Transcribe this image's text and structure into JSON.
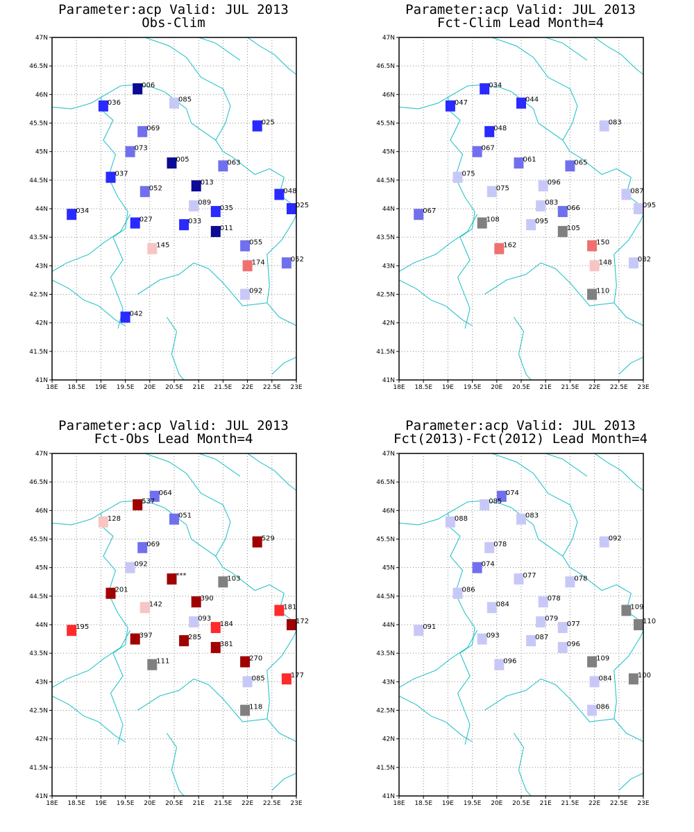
{
  "colors": {
    "coast": "#29c4c9",
    "grid": "#888888",
    "classes": {
      "dark-blue": "#0a0a96",
      "blue": "#2a2aff",
      "mid-blue": "#7070ee",
      "light-blue": "#c8c8f8",
      "light-red": "#f8c4c4",
      "salmon": "#f07070",
      "red": "#ff2a2a",
      "dark-red": "#a00000",
      "gray": "#808080"
    }
  },
  "map": {
    "lon_range": [
      18,
      23
    ],
    "lat_range": [
      41,
      47
    ],
    "lon_ticks": [
      "18E",
      "18.5E",
      "19E",
      "19.5E",
      "20E",
      "20.5E",
      "21E",
      "21.5E",
      "22E",
      "22.5E",
      "23E"
    ],
    "lat_ticks": [
      "41N",
      "41.5N",
      "42N",
      "42.5N",
      "43N",
      "43.5N",
      "44N",
      "44.5N",
      "45N",
      "45.5N",
      "46N",
      "46.5N",
      "47N"
    ]
  },
  "panels": [
    {
      "title1": "Parameter:acp Valid: JUL 2013",
      "title2": "Obs-Clim",
      "stations": [
        {
          "lon": 19.75,
          "lat": 46.1,
          "label": "006",
          "cls": "dark-blue"
        },
        {
          "lon": 20.5,
          "lat": 45.85,
          "label": "085",
          "cls": "light-blue"
        },
        {
          "lon": 19.05,
          "lat": 45.8,
          "label": "036",
          "cls": "blue"
        },
        {
          "lon": 22.2,
          "lat": 45.45,
          "label": "025",
          "cls": "blue"
        },
        {
          "lon": 19.85,
          "lat": 45.35,
          "label": "069",
          "cls": "mid-blue"
        },
        {
          "lon": 19.6,
          "lat": 45.0,
          "label": "073",
          "cls": "mid-blue"
        },
        {
          "lon": 20.45,
          "lat": 44.8,
          "label": "005",
          "cls": "dark-blue"
        },
        {
          "lon": 21.5,
          "lat": 44.75,
          "label": "063",
          "cls": "mid-blue"
        },
        {
          "lon": 19.2,
          "lat": 44.55,
          "label": "037",
          "cls": "blue"
        },
        {
          "lon": 20.95,
          "lat": 44.4,
          "label": "013",
          "cls": "dark-blue"
        },
        {
          "lon": 19.9,
          "lat": 44.3,
          "label": "052",
          "cls": "mid-blue"
        },
        {
          "lon": 22.65,
          "lat": 44.25,
          "label": "048",
          "cls": "blue"
        },
        {
          "lon": 20.9,
          "lat": 44.05,
          "label": "089",
          "cls": "light-blue"
        },
        {
          "lon": 22.9,
          "lat": 44.0,
          "label": "025",
          "cls": "blue"
        },
        {
          "lon": 21.35,
          "lat": 43.95,
          "label": "035",
          "cls": "blue"
        },
        {
          "lon": 18.4,
          "lat": 43.9,
          "label": "034",
          "cls": "blue"
        },
        {
          "lon": 19.7,
          "lat": 43.75,
          "label": "027",
          "cls": "blue"
        },
        {
          "lon": 20.7,
          "lat": 43.72,
          "label": "033",
          "cls": "blue"
        },
        {
          "lon": 21.35,
          "lat": 43.6,
          "label": "011",
          "cls": "dark-blue"
        },
        {
          "lon": 21.95,
          "lat": 43.35,
          "label": "055",
          "cls": "mid-blue"
        },
        {
          "lon": 20.05,
          "lat": 43.3,
          "label": "145",
          "cls": "light-red"
        },
        {
          "lon": 22.0,
          "lat": 43.0,
          "label": "174",
          "cls": "salmon"
        },
        {
          "lon": 22.8,
          "lat": 43.05,
          "label": "052",
          "cls": "mid-blue"
        },
        {
          "lon": 21.95,
          "lat": 42.5,
          "label": "092",
          "cls": "light-blue"
        },
        {
          "lon": 19.5,
          "lat": 42.1,
          "label": "042",
          "cls": "blue"
        }
      ]
    },
    {
      "title1": "Parameter:acp Valid: JUL 2013",
      "title2": "Fct-Clim Lead Month=4",
      "stations": [
        {
          "lon": 19.75,
          "lat": 46.1,
          "label": "034",
          "cls": "blue"
        },
        {
          "lon": 20.5,
          "lat": 45.85,
          "label": "044",
          "cls": "blue"
        },
        {
          "lon": 19.05,
          "lat": 45.8,
          "label": "047",
          "cls": "blue"
        },
        {
          "lon": 22.2,
          "lat": 45.45,
          "label": "083",
          "cls": "light-blue"
        },
        {
          "lon": 19.85,
          "lat": 45.35,
          "label": "048",
          "cls": "blue"
        },
        {
          "lon": 19.6,
          "lat": 45.0,
          "label": "067",
          "cls": "mid-blue"
        },
        {
          "lon": 20.45,
          "lat": 44.8,
          "label": "061",
          "cls": "mid-blue"
        },
        {
          "lon": 21.5,
          "lat": 44.75,
          "label": "065",
          "cls": "mid-blue"
        },
        {
          "lon": 19.2,
          "lat": 44.55,
          "label": "075",
          "cls": "light-blue"
        },
        {
          "lon": 20.95,
          "lat": 44.4,
          "label": "096",
          "cls": "light-blue"
        },
        {
          "lon": 19.9,
          "lat": 44.3,
          "label": "075",
          "cls": "light-blue"
        },
        {
          "lon": 22.65,
          "lat": 44.25,
          "label": "087",
          "cls": "light-blue"
        },
        {
          "lon": 20.9,
          "lat": 44.05,
          "label": "083",
          "cls": "light-blue"
        },
        {
          "lon": 22.9,
          "lat": 44.0,
          "label": "095",
          "cls": "light-blue"
        },
        {
          "lon": 21.35,
          "lat": 43.95,
          "label": "066",
          "cls": "mid-blue"
        },
        {
          "lon": 18.4,
          "lat": 43.9,
          "label": "067",
          "cls": "mid-blue"
        },
        {
          "lon": 19.7,
          "lat": 43.75,
          "label": "108",
          "cls": "gray"
        },
        {
          "lon": 20.7,
          "lat": 43.72,
          "label": "095",
          "cls": "light-blue"
        },
        {
          "lon": 21.35,
          "lat": 43.6,
          "label": "105",
          "cls": "gray"
        },
        {
          "lon": 21.95,
          "lat": 43.35,
          "label": "150",
          "cls": "salmon"
        },
        {
          "lon": 20.05,
          "lat": 43.3,
          "label": "162",
          "cls": "salmon"
        },
        {
          "lon": 22.0,
          "lat": 43.0,
          "label": "148",
          "cls": "light-red"
        },
        {
          "lon": 22.8,
          "lat": 43.05,
          "label": "082",
          "cls": "light-blue"
        },
        {
          "lon": 21.95,
          "lat": 42.5,
          "label": "110",
          "cls": "gray"
        }
      ]
    },
    {
      "title1": "Parameter:acp Valid: JUL 2013",
      "title2": "Fct-Obs Lead Month=4",
      "stations": [
        {
          "lon": 20.1,
          "lat": 46.25,
          "label": "064",
          "cls": "mid-blue"
        },
        {
          "lon": 19.75,
          "lat": 46.1,
          "label": "537",
          "cls": "dark-red"
        },
        {
          "lon": 20.5,
          "lat": 45.85,
          "label": "051",
          "cls": "mid-blue"
        },
        {
          "lon": 19.05,
          "lat": 45.8,
          "label": "128",
          "cls": "light-red"
        },
        {
          "lon": 22.2,
          "lat": 45.45,
          "label": "529",
          "cls": "dark-red"
        },
        {
          "lon": 19.85,
          "lat": 45.35,
          "label": "069",
          "cls": "mid-blue"
        },
        {
          "lon": 19.6,
          "lat": 45.0,
          "label": "092",
          "cls": "light-blue"
        },
        {
          "lon": 20.45,
          "lat": 44.8,
          "label": "***",
          "cls": "dark-red"
        },
        {
          "lon": 21.5,
          "lat": 44.75,
          "label": "103",
          "cls": "gray"
        },
        {
          "lon": 19.2,
          "lat": 44.55,
          "label": "201",
          "cls": "dark-red"
        },
        {
          "lon": 20.95,
          "lat": 44.4,
          "label": "390",
          "cls": "dark-red"
        },
        {
          "lon": 19.9,
          "lat": 44.3,
          "label": "142",
          "cls": "light-red"
        },
        {
          "lon": 22.65,
          "lat": 44.25,
          "label": "181",
          "cls": "red"
        },
        {
          "lon": 20.9,
          "lat": 44.05,
          "label": "093",
          "cls": "light-blue"
        },
        {
          "lon": 22.9,
          "lat": 44.0,
          "label": "172",
          "cls": "dark-red"
        },
        {
          "lon": 21.35,
          "lat": 43.95,
          "label": "184",
          "cls": "red"
        },
        {
          "lon": 18.4,
          "lat": 43.9,
          "label": "195",
          "cls": "red"
        },
        {
          "lon": 19.7,
          "lat": 43.75,
          "label": "397",
          "cls": "dark-red"
        },
        {
          "lon": 20.7,
          "lat": 43.72,
          "label": "285",
          "cls": "dark-red"
        },
        {
          "lon": 21.35,
          "lat": 43.6,
          "label": "381",
          "cls": "dark-red"
        },
        {
          "lon": 21.95,
          "lat": 43.35,
          "label": "270",
          "cls": "dark-red"
        },
        {
          "lon": 20.05,
          "lat": 43.3,
          "label": "111",
          "cls": "gray"
        },
        {
          "lon": 22.0,
          "lat": 43.0,
          "label": "085",
          "cls": "light-blue"
        },
        {
          "lon": 22.8,
          "lat": 43.05,
          "label": "177",
          "cls": "red"
        },
        {
          "lon": 21.95,
          "lat": 42.5,
          "label": "118",
          "cls": "gray"
        }
      ]
    },
    {
      "title1": "Parameter:acp Valid: JUL 2013",
      "title2": "Fct(2013)-Fct(2012) Lead Month=4",
      "stations": [
        {
          "lon": 20.1,
          "lat": 46.25,
          "label": "074",
          "cls": "mid-blue"
        },
        {
          "lon": 19.75,
          "lat": 46.1,
          "label": "085",
          "cls": "light-blue"
        },
        {
          "lon": 20.5,
          "lat": 45.85,
          "label": "083",
          "cls": "light-blue"
        },
        {
          "lon": 19.05,
          "lat": 45.8,
          "label": "088",
          "cls": "light-blue"
        },
        {
          "lon": 22.2,
          "lat": 45.45,
          "label": "092",
          "cls": "light-blue"
        },
        {
          "lon": 19.85,
          "lat": 45.35,
          "label": "078",
          "cls": "light-blue"
        },
        {
          "lon": 19.6,
          "lat": 45.0,
          "label": "074",
          "cls": "mid-blue"
        },
        {
          "lon": 20.45,
          "lat": 44.8,
          "label": "077",
          "cls": "light-blue"
        },
        {
          "lon": 21.5,
          "lat": 44.75,
          "label": "078",
          "cls": "light-blue"
        },
        {
          "lon": 19.2,
          "lat": 44.55,
          "label": "086",
          "cls": "light-blue"
        },
        {
          "lon": 20.95,
          "lat": 44.4,
          "label": "078",
          "cls": "light-blue"
        },
        {
          "lon": 19.9,
          "lat": 44.3,
          "label": "084",
          "cls": "light-blue"
        },
        {
          "lon": 22.65,
          "lat": 44.25,
          "label": "109",
          "cls": "gray"
        },
        {
          "lon": 20.9,
          "lat": 44.05,
          "label": "079",
          "cls": "light-blue"
        },
        {
          "lon": 22.9,
          "lat": 44.0,
          "label": "110",
          "cls": "gray"
        },
        {
          "lon": 21.35,
          "lat": 43.95,
          "label": "077",
          "cls": "light-blue"
        },
        {
          "lon": 18.4,
          "lat": 43.9,
          "label": "091",
          "cls": "light-blue"
        },
        {
          "lon": 19.7,
          "lat": 43.75,
          "label": "093",
          "cls": "light-blue"
        },
        {
          "lon": 20.7,
          "lat": 43.72,
          "label": "087",
          "cls": "light-blue"
        },
        {
          "lon": 21.35,
          "lat": 43.6,
          "label": "096",
          "cls": "light-blue"
        },
        {
          "lon": 21.95,
          "lat": 43.35,
          "label": "109",
          "cls": "gray"
        },
        {
          "lon": 20.05,
          "lat": 43.3,
          "label": "096",
          "cls": "light-blue"
        },
        {
          "lon": 22.0,
          "lat": 43.0,
          "label": "084",
          "cls": "light-blue"
        },
        {
          "lon": 22.8,
          "lat": 43.05,
          "label": "100",
          "cls": "gray"
        },
        {
          "lon": 21.95,
          "lat": 42.5,
          "label": "086",
          "cls": "light-blue"
        }
      ]
    }
  ]
}
